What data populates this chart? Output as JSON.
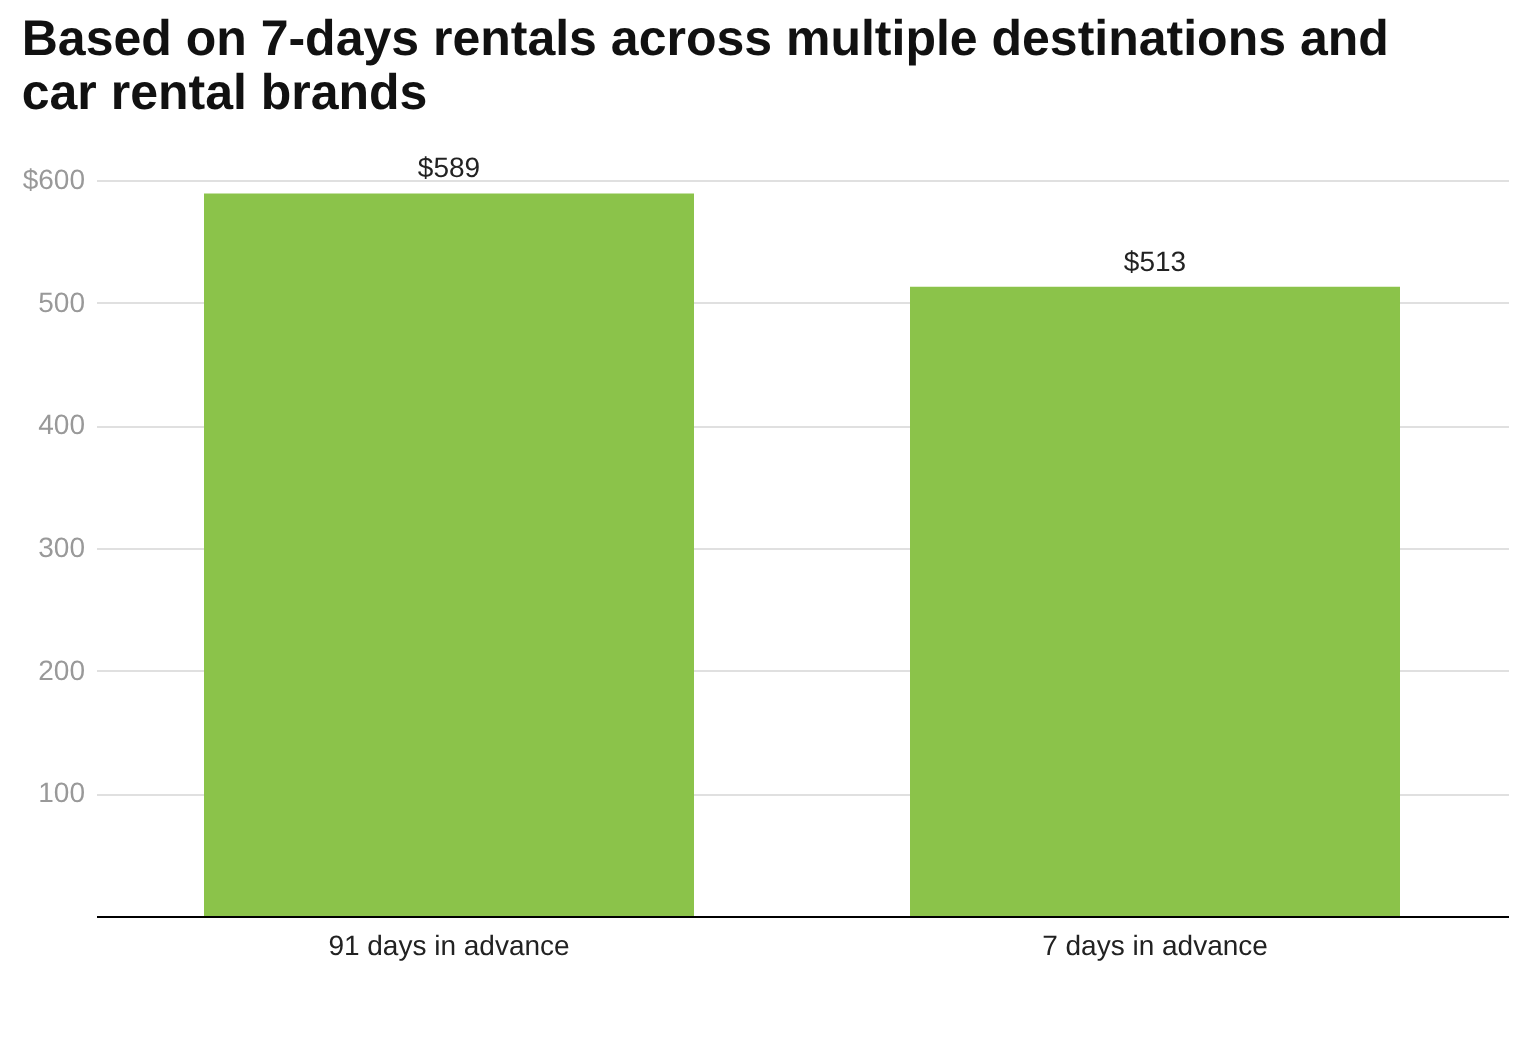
{
  "chart_data": {
    "type": "bar",
    "title": [
      "Based on 7-days rentals across multiple destinations and",
      "car rental brands"
    ],
    "categories": [
      "91 days in advance",
      "7 days in advance"
    ],
    "values": [
      589,
      513
    ],
    "value_labels": [
      "$589",
      "$513"
    ],
    "color": "#8bc34a",
    "ylim": [
      0,
      600
    ],
    "yticks": [
      {
        "value": 0,
        "label": null
      },
      100,
      200,
      300,
      400,
      500,
      {
        "value": 600,
        "label": "$600"
      }
    ],
    "grid": "y"
  }
}
